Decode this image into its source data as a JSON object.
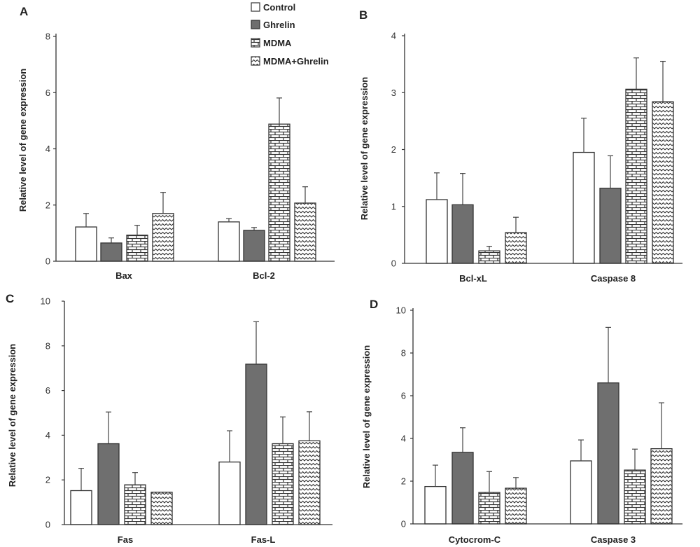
{
  "legend": [
    {
      "name": "Control",
      "pattern": "control"
    },
    {
      "name": "Ghrelin",
      "pattern": "ghrelin"
    },
    {
      "name": "MDMA",
      "pattern": "brick"
    },
    {
      "name": "MDMA+Ghrelin",
      "pattern": "wave"
    }
  ],
  "colors": {
    "ghrelin_fill": "#6f6f6f",
    "outline": "#333333",
    "axis": "#333333"
  },
  "chart_data": [
    {
      "panel": "A",
      "type": "bar",
      "ylabel": "Relative level of gene expression",
      "ylim": [
        0,
        8
      ],
      "yticks": [
        0,
        2,
        4,
        6,
        8
      ],
      "categories": [
        "Bax",
        "Bcl-2"
      ],
      "series": [
        {
          "name": "Control",
          "values": [
            1.22,
            1.4
          ],
          "errors": [
            0.48,
            0.12
          ]
        },
        {
          "name": "Ghrelin",
          "values": [
            0.65,
            1.1
          ],
          "errors": [
            0.18,
            0.1
          ]
        },
        {
          "name": "MDMA",
          "values": [
            0.93,
            4.88
          ],
          "errors": [
            0.35,
            0.93
          ]
        },
        {
          "name": "MDMA+Ghrelin",
          "values": [
            1.7,
            2.07
          ],
          "errors": [
            0.75,
            0.58
          ]
        }
      ]
    },
    {
      "panel": "B",
      "type": "bar",
      "ylabel": "Relative level of gene expression",
      "ylim": [
        0,
        4
      ],
      "yticks": [
        0,
        1,
        2,
        3,
        4
      ],
      "categories": [
        "Bcl-xL",
        "Caspase 8"
      ],
      "series": [
        {
          "name": "Control",
          "values": [
            1.12,
            1.95
          ],
          "errors": [
            0.47,
            0.6
          ]
        },
        {
          "name": "Ghrelin",
          "values": [
            1.03,
            1.32
          ],
          "errors": [
            0.55,
            0.57
          ]
        },
        {
          "name": "MDMA",
          "values": [
            0.22,
            3.06
          ],
          "errors": [
            0.08,
            0.55
          ]
        },
        {
          "name": "MDMA+Ghrelin",
          "values": [
            0.54,
            2.84
          ],
          "errors": [
            0.27,
            0.71
          ]
        }
      ]
    },
    {
      "panel": "C",
      "type": "bar",
      "ylabel": "Relative level of gene expression",
      "ylim": [
        0,
        10
      ],
      "yticks": [
        0,
        2,
        4,
        6,
        8,
        10
      ],
      "categories": [
        "Fas",
        "Fas-L"
      ],
      "series": [
        {
          "name": "Control",
          "values": [
            1.52,
            2.8
          ],
          "errors": [
            1.0,
            1.4
          ]
        },
        {
          "name": "Ghrelin",
          "values": [
            3.62,
            7.18
          ],
          "errors": [
            1.42,
            1.9
          ]
        },
        {
          "name": "MDMA",
          "values": [
            1.78,
            3.62
          ],
          "errors": [
            0.55,
            1.2
          ]
        },
        {
          "name": "MDMA+Ghrelin",
          "values": [
            1.45,
            3.75
          ],
          "errors": [
            0.0,
            1.3
          ]
        }
      ]
    },
    {
      "panel": "D",
      "type": "bar",
      "ylabel": "Relative level of gene expression",
      "ylim": [
        0,
        10
      ],
      "yticks": [
        0,
        2,
        4,
        6,
        8,
        10
      ],
      "categories": [
        "Cytocrom-C",
        "Caspase 3"
      ],
      "series": [
        {
          "name": "Control",
          "values": [
            1.75,
            2.95
          ],
          "errors": [
            1.0,
            0.98
          ]
        },
        {
          "name": "Ghrelin",
          "values": [
            3.35,
            6.6
          ],
          "errors": [
            1.15,
            2.6
          ]
        },
        {
          "name": "MDMA",
          "values": [
            1.47,
            2.52
          ],
          "errors": [
            0.98,
            0.98
          ]
        },
        {
          "name": "MDMA+Ghrelin",
          "values": [
            1.67,
            3.52
          ],
          "errors": [
            0.5,
            2.15
          ]
        }
      ]
    }
  ]
}
